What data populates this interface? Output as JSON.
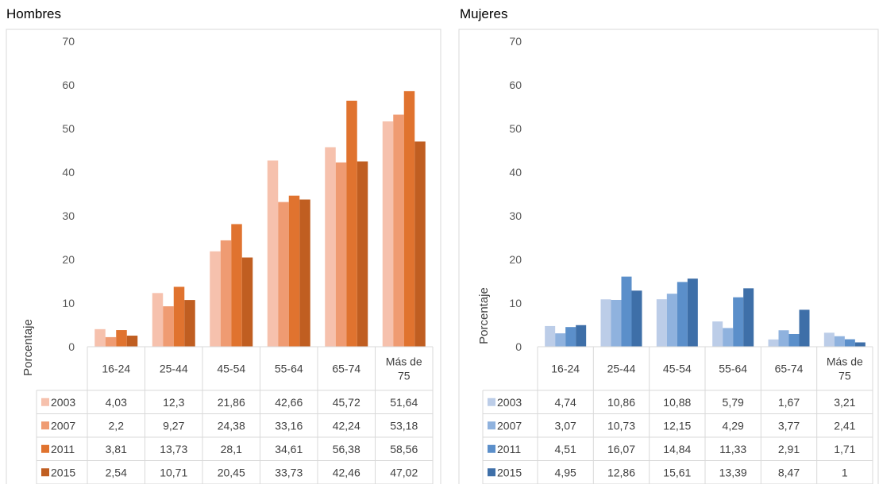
{
  "chart_data": [
    {
      "type": "bar",
      "title": "Hombres",
      "ylabel": "Porcentaje",
      "ylim": [
        0,
        70
      ],
      "yticks": [
        0,
        10,
        20,
        30,
        40,
        50,
        60,
        70
      ],
      "categories": [
        "16-24",
        "25-44",
        "45-54",
        "55-64",
        "65-74",
        "Más de 75"
      ],
      "series": [
        {
          "name": "2003",
          "color": "#f6c1ad",
          "values": [
            4.03,
            12.3,
            21.86,
            42.66,
            45.72,
            51.64
          ]
        },
        {
          "name": "2007",
          "color": "#ef9b72",
          "values": [
            2.2,
            9.27,
            24.38,
            33.16,
            42.24,
            53.18
          ]
        },
        {
          "name": "2011",
          "color": "#e0732f",
          "values": [
            3.81,
            13.73,
            28.1,
            34.61,
            56.38,
            58.56
          ]
        },
        {
          "name": "2015",
          "color": "#c05e21",
          "values": [
            2.54,
            10.71,
            20.45,
            33.73,
            42.46,
            47.02
          ]
        }
      ],
      "table_labels": [
        [
          "4,03",
          "12,3",
          "21,86",
          "42,66",
          "45,72",
          "51,64"
        ],
        [
          "2,2",
          "9,27",
          "24,38",
          "33,16",
          "42,24",
          "53,18"
        ],
        [
          "3,81",
          "13,73",
          "28,1",
          "34,61",
          "56,38",
          "58,56"
        ],
        [
          "2,54",
          "10,71",
          "20,45",
          "33,73",
          "42,46",
          "47,02"
        ]
      ],
      "grid": false,
      "legend": "data-table"
    },
    {
      "type": "bar",
      "title": "Mujeres",
      "ylabel": "Porcentaje",
      "ylim": [
        0,
        70
      ],
      "yticks": [
        0,
        10,
        20,
        30,
        40,
        50,
        60,
        70
      ],
      "categories": [
        "16-24",
        "25-44",
        "45-54",
        "55-64",
        "65-74",
        "Más de 75"
      ],
      "series": [
        {
          "name": "2003",
          "color": "#bccde8",
          "values": [
            4.74,
            10.86,
            10.88,
            5.79,
            1.67,
            3.21
          ]
        },
        {
          "name": "2007",
          "color": "#8fb2de",
          "values": [
            3.07,
            10.73,
            12.15,
            4.29,
            3.77,
            2.41
          ]
        },
        {
          "name": "2011",
          "color": "#5b8fca",
          "values": [
            4.51,
            16.07,
            14.84,
            11.33,
            2.91,
            1.71
          ]
        },
        {
          "name": "2015",
          "color": "#3e6fa8",
          "values": [
            4.95,
            12.86,
            15.61,
            13.39,
            8.47,
            1
          ]
        }
      ],
      "table_labels": [
        [
          "4,74",
          "10,86",
          "10,88",
          "5,79",
          "1,67",
          "3,21"
        ],
        [
          "3,07",
          "10,73",
          "12,15",
          "4,29",
          "3,77",
          "2,41"
        ],
        [
          "4,51",
          "16,07",
          "14,84",
          "11,33",
          "2,91",
          "1,71"
        ],
        [
          "4,95",
          "12,86",
          "15,61",
          "13,39",
          "8,47",
          "1"
        ]
      ],
      "grid": false,
      "legend": "data-table"
    }
  ]
}
